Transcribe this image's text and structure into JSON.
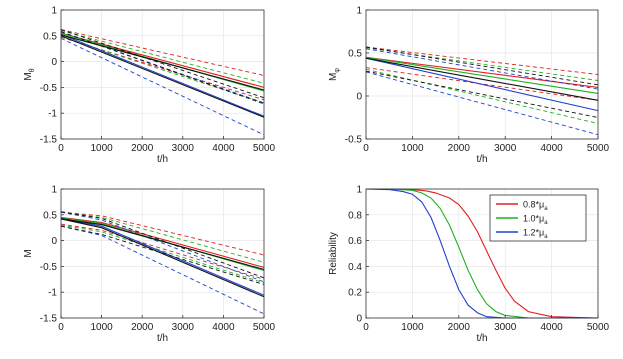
{
  "chart_data": [
    {
      "type": "line",
      "xlabel": "t/h",
      "ylabel": "M",
      "ylabel_sub": "θ",
      "xlim": [
        0,
        5000
      ],
      "ylim": [
        -1.5,
        1
      ],
      "xticks": [
        0,
        1000,
        2000,
        3000,
        4000,
        5000
      ],
      "yticks": [
        -1.5,
        -1,
        -0.5,
        0,
        0.5,
        1
      ],
      "series": [
        {
          "color": "#e02020",
          "style": "solid",
          "x": [
            0,
            5000
          ],
          "y": [
            0.55,
            -0.5
          ]
        },
        {
          "color": "#e02020",
          "style": "dashed",
          "x": [
            0,
            5000
          ],
          "y": [
            0.62,
            -0.27
          ]
        },
        {
          "color": "#e02020",
          "style": "dashed",
          "x": [
            0,
            5000
          ],
          "y": [
            0.47,
            -0.74
          ]
        },
        {
          "color": "#20b020",
          "style": "solid",
          "x": [
            0,
            5000
          ],
          "y": [
            0.55,
            -0.57
          ]
        },
        {
          "color": "#20b020",
          "style": "dashed",
          "x": [
            0,
            5000
          ],
          "y": [
            0.6,
            -0.42
          ]
        },
        {
          "color": "#20b020",
          "style": "dashed",
          "x": [
            0,
            5000
          ],
          "y": [
            0.48,
            -0.8
          ]
        },
        {
          "color": "#2040d0",
          "style": "solid",
          "x": [
            0,
            5000
          ],
          "y": [
            0.53,
            -1.06
          ]
        },
        {
          "color": "#2040d0",
          "style": "dashed",
          "x": [
            0,
            5000
          ],
          "y": [
            0.58,
            -0.8
          ]
        },
        {
          "color": "#2040d0",
          "style": "dashed",
          "x": [
            0,
            5000
          ],
          "y": [
            0.45,
            -1.42
          ]
        },
        {
          "color": "#111111",
          "style": "solid",
          "x": [
            0,
            5000
          ],
          "y": [
            0.52,
            -0.55
          ]
        },
        {
          "color": "#111111",
          "style": "dashed",
          "x": [
            0,
            5000
          ],
          "y": [
            0.58,
            -0.82
          ]
        },
        {
          "color": "#111111",
          "style": "solid",
          "x": [
            0,
            5000
          ],
          "y": [
            0.5,
            -1.08
          ]
        },
        {
          "color": "#111111",
          "style": "dashed",
          "x": [
            0,
            5000
          ],
          "y": [
            0.62,
            -0.7
          ]
        }
      ]
    },
    {
      "type": "line",
      "xlabel": "t/h",
      "ylabel": "M",
      "ylabel_sub": "φ",
      "xlim": [
        0,
        5000
      ],
      "ylim": [
        -0.5,
        1
      ],
      "xticks": [
        0,
        1000,
        2000,
        3000,
        4000,
        5000
      ],
      "yticks": [
        -0.5,
        0,
        0.5,
        1
      ],
      "series": [
        {
          "color": "#e02020",
          "style": "solid",
          "x": [
            0,
            5000
          ],
          "y": [
            0.45,
            0.1
          ]
        },
        {
          "color": "#e02020",
          "style": "dashed",
          "x": [
            0,
            5000
          ],
          "y": [
            0.57,
            0.25
          ]
        },
        {
          "color": "#e02020",
          "style": "dashed",
          "x": [
            0,
            5000
          ],
          "y": [
            0.33,
            -0.05
          ]
        },
        {
          "color": "#20b020",
          "style": "solid",
          "x": [
            0,
            5000
          ],
          "y": [
            0.45,
            0.03
          ]
        },
        {
          "color": "#20b020",
          "style": "dashed",
          "x": [
            0,
            5000
          ],
          "y": [
            0.56,
            0.18
          ]
        },
        {
          "color": "#20b020",
          "style": "dashed",
          "x": [
            0,
            5000
          ],
          "y": [
            0.31,
            -0.32
          ]
        },
        {
          "color": "#2040d0",
          "style": "solid",
          "x": [
            0,
            5000
          ],
          "y": [
            0.44,
            -0.17
          ]
        },
        {
          "color": "#2040d0",
          "style": "dashed",
          "x": [
            0,
            5000
          ],
          "y": [
            0.55,
            0.08
          ]
        },
        {
          "color": "#2040d0",
          "style": "dashed",
          "x": [
            0,
            5000
          ],
          "y": [
            0.28,
            -0.45
          ]
        },
        {
          "color": "#111111",
          "style": "solid",
          "x": [
            0,
            5000
          ],
          "y": [
            0.44,
            -0.05
          ]
        },
        {
          "color": "#111111",
          "style": "dashed",
          "x": [
            0,
            5000
          ],
          "y": [
            0.57,
            0.13
          ]
        },
        {
          "color": "#111111",
          "style": "dashed",
          "x": [
            0,
            5000
          ],
          "y": [
            0.29,
            -0.25
          ]
        }
      ]
    },
    {
      "type": "line",
      "xlabel": "t/h",
      "ylabel": "M",
      "ylabel_sub": "",
      "xlim": [
        0,
        5000
      ],
      "ylim": [
        -1.5,
        1
      ],
      "xticks": [
        0,
        1000,
        2000,
        3000,
        4000,
        5000
      ],
      "yticks": [
        -1.5,
        -1,
        -0.5,
        0,
        0.5,
        1
      ],
      "series": [
        {
          "color": "#e02020",
          "style": "solid",
          "x": [
            0,
            1000,
            5000
          ],
          "y": [
            0.45,
            0.35,
            -0.52
          ]
        },
        {
          "color": "#e02020",
          "style": "dashed",
          "x": [
            0,
            1000,
            5000
          ],
          "y": [
            0.55,
            0.48,
            -0.28
          ]
        },
        {
          "color": "#e02020",
          "style": "dashed",
          "x": [
            0,
            1000,
            5000
          ],
          "y": [
            0.32,
            0.2,
            -0.75
          ]
        },
        {
          "color": "#20b020",
          "style": "solid",
          "x": [
            0,
            1000,
            5000
          ],
          "y": [
            0.44,
            0.33,
            -0.58
          ]
        },
        {
          "color": "#20b020",
          "style": "dashed",
          "x": [
            0,
            1000,
            5000
          ],
          "y": [
            0.55,
            0.45,
            -0.42
          ]
        },
        {
          "color": "#20b020",
          "style": "dashed",
          "x": [
            0,
            1000,
            5000
          ],
          "y": [
            0.3,
            0.17,
            -0.82
          ]
        },
        {
          "color": "#2040d0",
          "style": "solid",
          "x": [
            0,
            1000,
            5000
          ],
          "y": [
            0.43,
            0.28,
            -1.06
          ]
        },
        {
          "color": "#2040d0",
          "style": "dashed",
          "x": [
            0,
            1000,
            5000
          ],
          "y": [
            0.55,
            0.4,
            -0.8
          ]
        },
        {
          "color": "#2040d0",
          "style": "dashed",
          "x": [
            0,
            1000,
            5000
          ],
          "y": [
            0.28,
            0.1,
            -1.42
          ]
        },
        {
          "color": "#111111",
          "style": "solid",
          "x": [
            0,
            1000,
            5000
          ],
          "y": [
            0.42,
            0.31,
            -0.56
          ]
        },
        {
          "color": "#111111",
          "style": "dashed",
          "x": [
            0,
            1000,
            5000
          ],
          "y": [
            0.56,
            0.43,
            -0.72
          ]
        },
        {
          "color": "#111111",
          "style": "solid",
          "x": [
            0,
            1000,
            5000
          ],
          "y": [
            0.42,
            0.25,
            -1.09
          ]
        },
        {
          "color": "#111111",
          "style": "dashed",
          "x": [
            0,
            1000,
            5000
          ],
          "y": [
            0.28,
            0.12,
            -0.85
          ]
        }
      ]
    },
    {
      "type": "line",
      "xlabel": "t/h",
      "ylabel": "Reliability",
      "ylabel_sub": "",
      "xlim": [
        0,
        5000
      ],
      "ylim": [
        0,
        1
      ],
      "xticks": [
        0,
        1000,
        2000,
        3000,
        4000,
        5000
      ],
      "yticks": [
        0,
        0.2,
        0.4,
        0.6,
        0.8,
        1
      ],
      "legend_position": "top-right",
      "series": [
        {
          "name": "0.8*μ",
          "name_sub": "a",
          "color": "#e02020",
          "style": "solid",
          "x": [
            0,
            500,
            1000,
            1300,
            1500,
            1800,
            2000,
            2200,
            2400,
            2600,
            2800,
            3000,
            3200,
            3500,
            4000,
            5000
          ],
          "y": [
            1,
            1,
            0.995,
            0.985,
            0.97,
            0.93,
            0.88,
            0.79,
            0.67,
            0.52,
            0.37,
            0.23,
            0.13,
            0.05,
            0.01,
            0
          ]
        },
        {
          "name": "1.0*μ",
          "name_sub": "a",
          "color": "#20b020",
          "style": "solid",
          "x": [
            0,
            500,
            1000,
            1200,
            1400,
            1600,
            1800,
            2000,
            2200,
            2400,
            2600,
            2800,
            3000,
            3500,
            5000
          ],
          "y": [
            1,
            1,
            0.99,
            0.97,
            0.93,
            0.85,
            0.72,
            0.55,
            0.37,
            0.22,
            0.11,
            0.05,
            0.02,
            0,
            0
          ]
        },
        {
          "name": "1.2*μ",
          "name_sub": "a",
          "color": "#2040d0",
          "style": "solid",
          "x": [
            0,
            500,
            800,
            1000,
            1200,
            1400,
            1600,
            1800,
            2000,
            2200,
            2400,
            2600,
            3000,
            5000
          ],
          "y": [
            1,
            0.995,
            0.98,
            0.96,
            0.9,
            0.78,
            0.6,
            0.4,
            0.22,
            0.1,
            0.04,
            0.01,
            0,
            0
          ]
        }
      ]
    }
  ]
}
